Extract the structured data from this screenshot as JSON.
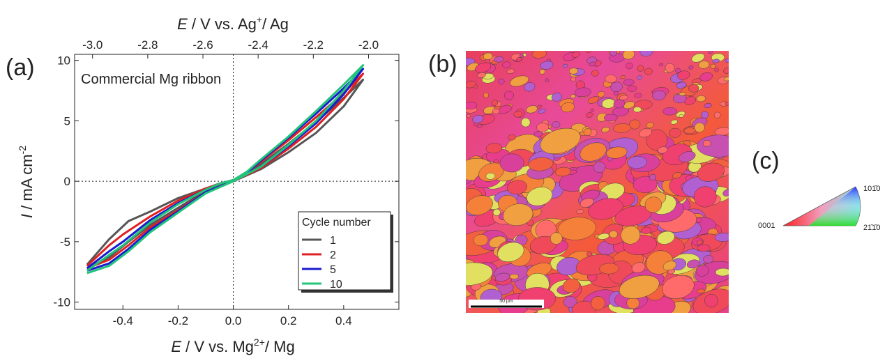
{
  "chart_data": {
    "type": "line",
    "panel": "(a)",
    "annotation": "Commercial Mg ribbon",
    "x_label": {
      "symbol": "E",
      "text": " / V vs. Mg",
      "sup": "2+",
      "tail": "/ Mg"
    },
    "x2_label": {
      "symbol": "E",
      "text": " / V vs. Ag",
      "sup": "+",
      "tail": "/ Ag"
    },
    "y_label": {
      "symbol": "I",
      "text": " / mA cm",
      "sup": "-2"
    },
    "xlim": [
      -0.575,
      0.6
    ],
    "ylim": [
      -10.6,
      10.5
    ],
    "x2lim": [
      -3.065,
      -1.89
    ],
    "xticks": [
      -0.4,
      -0.2,
      {
        "value": 0,
        "label": "0.0"
      },
      0.2,
      0.4
    ],
    "x2ticks": [
      {
        "value": -3,
        "label": "-3.0"
      },
      -2.8,
      -2.6,
      -2.4,
      -2.2,
      {
        "value": -2,
        "label": "-2.0"
      }
    ],
    "yticks": [
      -10,
      -5,
      0,
      5,
      10
    ],
    "vline": 0,
    "hline": 0,
    "legend_title": "Cycle number",
    "legend": "lower right",
    "series": [
      {
        "name": "1",
        "color": "#555555",
        "x": [
          -0.53,
          -0.45,
          -0.38,
          -0.3,
          -0.2,
          -0.1,
          0,
          0.1,
          0.2,
          0.3,
          0.4,
          0.47,
          0.4,
          0.3,
          0.2,
          0.1,
          0.05,
          0,
          -0.05,
          -0.1,
          -0.2,
          -0.3,
          -0.36,
          -0.38,
          -0.45,
          -0.53
        ],
        "values": [
          -7.2,
          -6.3,
          -5.0,
          -3.6,
          -2.2,
          -0.8,
          0,
          1.0,
          2.4,
          4.0,
          6.2,
          8.4,
          6.9,
          4.9,
          3.1,
          1.4,
          0.6,
          0.1,
          -0.2,
          -0.6,
          -1.4,
          -2.5,
          -3.1,
          -3.3,
          -4.8,
          -6.9
        ]
      },
      {
        "name": "2",
        "color": "#e02020",
        "x": [
          -0.53,
          -0.45,
          -0.38,
          -0.3,
          -0.2,
          -0.1,
          0,
          0.1,
          0.2,
          0.3,
          0.4,
          0.47,
          0.4,
          0.3,
          0.2,
          0.1,
          0.05,
          0,
          -0.05,
          -0.1,
          -0.2,
          -0.3,
          -0.4,
          -0.45,
          -0.53
        ],
        "values": [
          -7.2,
          -6.5,
          -5.3,
          -3.8,
          -2.4,
          -0.9,
          0,
          1.1,
          2.7,
          4.5,
          6.8,
          8.9,
          7.3,
          5.3,
          3.4,
          1.6,
          0.7,
          0.1,
          -0.2,
          -0.6,
          -1.6,
          -2.9,
          -4.4,
          -5.3,
          -7.0
        ]
      },
      {
        "name": "5",
        "color": "#1a1ad0",
        "x": [
          -0.53,
          -0.45,
          -0.38,
          -0.3,
          -0.2,
          -0.1,
          0,
          0.1,
          0.2,
          0.3,
          0.4,
          0.47,
          0.4,
          0.3,
          0.2,
          0.1,
          0.05,
          0,
          -0.05,
          -0.1,
          -0.2,
          -0.3,
          -0.4,
          -0.45,
          -0.53
        ],
        "values": [
          -7.4,
          -6.8,
          -5.6,
          -4.0,
          -2.5,
          -0.9,
          0,
          1.2,
          2.9,
          4.8,
          7.2,
          9.3,
          7.7,
          5.6,
          3.6,
          1.7,
          0.7,
          0.1,
          -0.2,
          -0.7,
          -1.8,
          -3.2,
          -5.0,
          -5.8,
          -7.2
        ]
      },
      {
        "name": "10",
        "color": "#22c47a",
        "x": [
          -0.53,
          -0.45,
          -0.38,
          -0.3,
          -0.2,
          -0.1,
          0,
          0.1,
          0.2,
          0.3,
          0.4,
          0.47,
          0.4,
          0.3,
          0.2,
          0.1,
          0.05,
          0,
          -0.05,
          -0.1,
          -0.2,
          -0.3,
          -0.4,
          -0.45,
          -0.53
        ],
        "values": [
          -7.6,
          -7.0,
          -5.8,
          -4.2,
          -2.6,
          -1.0,
          0,
          1.2,
          3.0,
          5.0,
          7.5,
          9.6,
          8.0,
          5.8,
          3.7,
          1.8,
          0.8,
          0.1,
          -0.2,
          -0.7,
          -1.9,
          -3.4,
          -5.3,
          -6.1,
          -7.4
        ]
      }
    ]
  },
  "map_panel": {
    "label": "(b)",
    "scale_bar": "50 µm"
  },
  "key_panel": {
    "label": "(c)",
    "corners": [
      "0001",
      "101̄0",
      "21̄1̄0"
    ]
  }
}
